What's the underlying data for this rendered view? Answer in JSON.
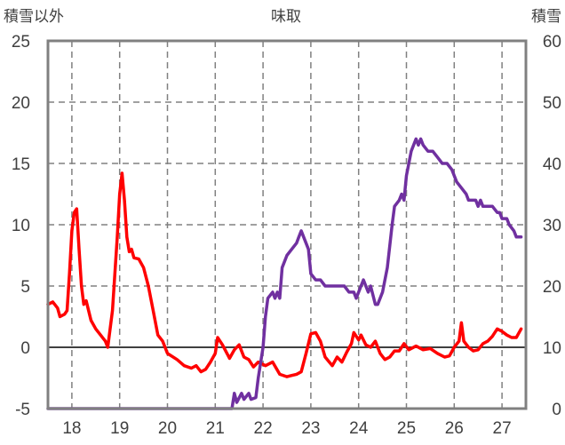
{
  "chart_data": {
    "type": "line",
    "title": "味取",
    "ylabel_left": "積雪以外",
    "ylabel_right": "積雪",
    "x_ticks": [
      "18",
      "19",
      "20",
      "21",
      "22",
      "23",
      "24",
      "25",
      "26",
      "27"
    ],
    "x_range": [
      17.5,
      27.5
    ],
    "y_left_range": [
      -5,
      25
    ],
    "y_left_ticks": [
      "25",
      "20",
      "15",
      "10",
      "5",
      "0",
      "-5"
    ],
    "y_right_range": [
      0,
      60
    ],
    "y_right_ticks": [
      "60",
      "50",
      "40",
      "30",
      "20",
      "10",
      "0"
    ],
    "grid": true,
    "colors": {
      "red": "#ff0000",
      "purple": "#7030a0",
      "grid": "#808080",
      "axis": "#808080",
      "zero": "#404040"
    },
    "series": [
      {
        "color": "#ff0000",
        "axis": "left",
        "points": [
          [
            17.5,
            3.5
          ],
          [
            17.6,
            3.7
          ],
          [
            17.7,
            3.2
          ],
          [
            17.75,
            2.5
          ],
          [
            17.85,
            2.7
          ],
          [
            17.9,
            3.0
          ],
          [
            17.95,
            6.0
          ],
          [
            18.0,
            9.5
          ],
          [
            18.05,
            11.0
          ],
          [
            18.1,
            11.3
          ],
          [
            18.15,
            8.0
          ],
          [
            18.2,
            5.0
          ],
          [
            18.25,
            3.5
          ],
          [
            18.3,
            3.8
          ],
          [
            18.35,
            3.0
          ],
          [
            18.4,
            2.2
          ],
          [
            18.5,
            1.5
          ],
          [
            18.6,
            1.0
          ],
          [
            18.7,
            0.5
          ],
          [
            18.75,
            0.0
          ],
          [
            18.85,
            3.0
          ],
          [
            18.95,
            9.0
          ],
          [
            19.0,
            12.5
          ],
          [
            19.05,
            14.2
          ],
          [
            19.1,
            12.0
          ],
          [
            19.15,
            9.0
          ],
          [
            19.2,
            7.8
          ],
          [
            19.25,
            8.0
          ],
          [
            19.3,
            7.3
          ],
          [
            19.4,
            7.2
          ],
          [
            19.5,
            6.5
          ],
          [
            19.6,
            5.0
          ],
          [
            19.7,
            3.0
          ],
          [
            19.8,
            1.0
          ],
          [
            19.9,
            0.5
          ],
          [
            20.0,
            -0.5
          ],
          [
            20.2,
            -1.0
          ],
          [
            20.35,
            -1.5
          ],
          [
            20.5,
            -1.7
          ],
          [
            20.6,
            -1.5
          ],
          [
            20.7,
            -2.0
          ],
          [
            20.8,
            -1.8
          ],
          [
            20.9,
            -1.2
          ],
          [
            21.0,
            -0.5
          ],
          [
            21.05,
            0.8
          ],
          [
            21.15,
            0.2
          ],
          [
            21.3,
            -0.9
          ],
          [
            21.4,
            -0.2
          ],
          [
            21.5,
            0.2
          ],
          [
            21.6,
            -0.8
          ],
          [
            21.7,
            -1.0
          ],
          [
            21.8,
            -1.6
          ],
          [
            21.9,
            -1.2
          ],
          [
            22.05,
            -1.5
          ],
          [
            22.2,
            -1.2
          ],
          [
            22.35,
            -2.2
          ],
          [
            22.5,
            -2.4
          ],
          [
            22.6,
            -2.3
          ],
          [
            22.7,
            -2.2
          ],
          [
            22.8,
            -2.0
          ],
          [
            22.9,
            -0.5
          ],
          [
            23.0,
            1.1
          ],
          [
            23.1,
            1.2
          ],
          [
            23.2,
            0.5
          ],
          [
            23.3,
            -0.8
          ],
          [
            23.45,
            -1.5
          ],
          [
            23.55,
            -0.8
          ],
          [
            23.65,
            -1.2
          ],
          [
            23.75,
            -0.4
          ],
          [
            23.85,
            0.3
          ],
          [
            23.9,
            1.2
          ],
          [
            24.0,
            0.6
          ],
          [
            24.05,
            1.0
          ],
          [
            24.15,
            0.2
          ],
          [
            24.25,
            0.0
          ],
          [
            24.35,
            0.5
          ],
          [
            24.45,
            -0.5
          ],
          [
            24.55,
            -1.0
          ],
          [
            24.65,
            -0.8
          ],
          [
            24.75,
            -0.3
          ],
          [
            24.85,
            -0.3
          ],
          [
            24.95,
            0.3
          ],
          [
            25.05,
            -0.2
          ],
          [
            25.2,
            0.1
          ],
          [
            25.35,
            -0.2
          ],
          [
            25.5,
            -0.1
          ],
          [
            25.65,
            -0.5
          ],
          [
            25.8,
            -0.8
          ],
          [
            25.9,
            -0.7
          ],
          [
            26.0,
            0.0
          ],
          [
            26.1,
            0.5
          ],
          [
            26.15,
            2.0
          ],
          [
            26.2,
            0.5
          ],
          [
            26.3,
            0.0
          ],
          [
            26.4,
            -0.3
          ],
          [
            26.5,
            -0.2
          ],
          [
            26.6,
            0.3
          ],
          [
            26.7,
            0.5
          ],
          [
            26.8,
            0.9
          ],
          [
            26.9,
            1.5
          ],
          [
            27.0,
            1.3
          ],
          [
            27.1,
            1.0
          ],
          [
            27.2,
            0.8
          ],
          [
            27.3,
            0.8
          ],
          [
            27.4,
            1.5
          ]
        ]
      },
      {
        "color": "#7030a0",
        "axis": "right",
        "points": [
          [
            17.5,
            0
          ],
          [
            21.35,
            0
          ],
          [
            21.4,
            2.5
          ],
          [
            21.45,
            1.0
          ],
          [
            21.55,
            2.5
          ],
          [
            21.6,
            1.5
          ],
          [
            21.7,
            2.5
          ],
          [
            21.75,
            1.5
          ],
          [
            21.85,
            1.8
          ],
          [
            21.9,
            5.0
          ],
          [
            22.0,
            10.0
          ],
          [
            22.05,
            15.0
          ],
          [
            22.1,
            18.0
          ],
          [
            22.2,
            19.0
          ],
          [
            22.25,
            18.0
          ],
          [
            22.3,
            19.0
          ],
          [
            22.35,
            18.0
          ],
          [
            22.4,
            23.0
          ],
          [
            22.5,
            25.0
          ],
          [
            22.6,
            26.0
          ],
          [
            22.7,
            27.0
          ],
          [
            22.75,
            28.0
          ],
          [
            22.8,
            29.0
          ],
          [
            22.85,
            28.0
          ],
          [
            22.9,
            27.0
          ],
          [
            22.95,
            26.0
          ],
          [
            23.0,
            22.0
          ],
          [
            23.1,
            21.0
          ],
          [
            23.2,
            21.0
          ],
          [
            23.3,
            20.0
          ],
          [
            23.5,
            20.0
          ],
          [
            23.6,
            20.0
          ],
          [
            23.7,
            20.0
          ],
          [
            23.8,
            19.0
          ],
          [
            23.9,
            19.0
          ],
          [
            23.95,
            18.0
          ],
          [
            24.0,
            19.0
          ],
          [
            24.1,
            21.0
          ],
          [
            24.2,
            19.0
          ],
          [
            24.25,
            20.0
          ],
          [
            24.35,
            17.0
          ],
          [
            24.4,
            17.0
          ],
          [
            24.5,
            19.0
          ],
          [
            24.6,
            23.0
          ],
          [
            24.7,
            30.0
          ],
          [
            24.75,
            33.0
          ],
          [
            24.85,
            34.0
          ],
          [
            24.9,
            35.0
          ],
          [
            24.95,
            34.0
          ],
          [
            25.0,
            38.0
          ],
          [
            25.1,
            42.0
          ],
          [
            25.2,
            44.0
          ],
          [
            25.25,
            43.0
          ],
          [
            25.3,
            44.0
          ],
          [
            25.35,
            43.0
          ],
          [
            25.45,
            42.0
          ],
          [
            25.55,
            42.0
          ],
          [
            25.65,
            41.0
          ],
          [
            25.75,
            40.0
          ],
          [
            25.85,
            40.0
          ],
          [
            25.95,
            39.0
          ],
          [
            26.05,
            37.0
          ],
          [
            26.15,
            36.0
          ],
          [
            26.25,
            35.0
          ],
          [
            26.3,
            34.0
          ],
          [
            26.45,
            34.0
          ],
          [
            26.5,
            33.0
          ],
          [
            26.55,
            34.0
          ],
          [
            26.6,
            33.0
          ],
          [
            26.8,
            33.0
          ],
          [
            26.9,
            32.0
          ],
          [
            26.95,
            32.0
          ],
          [
            27.0,
            31.0
          ],
          [
            27.1,
            31.0
          ],
          [
            27.15,
            30.0
          ],
          [
            27.25,
            29.0
          ],
          [
            27.3,
            28.0
          ],
          [
            27.4,
            28.0
          ]
        ]
      }
    ]
  }
}
